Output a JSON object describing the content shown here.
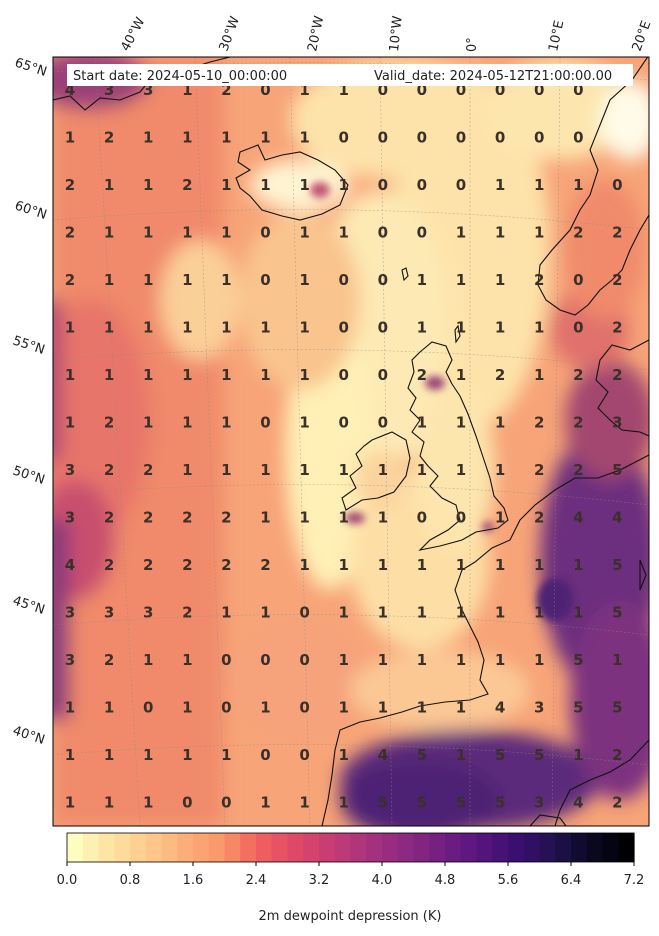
{
  "header": {
    "start_label": "Start date: 2024-05-10_00:00:00",
    "valid_label": "Valid_date: 2024-05-12T21:00:00.00"
  },
  "lon_labels": [
    "40°W",
    "30°W",
    "20°W",
    "10°W",
    "0°",
    "10°E",
    "20°E"
  ],
  "lat_labels": [
    "65°N",
    "60°N",
    "55°N",
    "50°N",
    "45°N",
    "40°N"
  ],
  "colorbar": {
    "label": "2m dewpoint depression (K)",
    "ticks": [
      "0.0",
      "0.8",
      "1.6",
      "2.4",
      "3.2",
      "4.0",
      "4.8",
      "5.6",
      "6.4",
      "7.2"
    ],
    "min": 0.0,
    "max": 7.2,
    "levels": 36
  },
  "grid_values": [
    [
      "4",
      "3",
      "3",
      "1",
      "2",
      "0",
      "1",
      "1",
      "0",
      "0",
      "0",
      "0",
      "0",
      "0"
    ],
    [
      "1",
      "2",
      "1",
      "1",
      "1",
      "1",
      "1",
      "0",
      "0",
      "0",
      "0",
      "0",
      "0",
      "0"
    ],
    [
      "2",
      "1",
      "1",
      "2",
      "1",
      "1",
      "1",
      "1",
      "0",
      "0",
      "0",
      "1",
      "1",
      "1",
      "0"
    ],
    [
      "2",
      "1",
      "1",
      "1",
      "1",
      "0",
      "1",
      "1",
      "0",
      "0",
      "1",
      "1",
      "1",
      "2",
      "2"
    ],
    [
      "2",
      "1",
      "1",
      "1",
      "1",
      "0",
      "1",
      "0",
      "0",
      "1",
      "1",
      "1",
      "2",
      "0",
      "2"
    ],
    [
      "1",
      "1",
      "1",
      "1",
      "1",
      "1",
      "1",
      "0",
      "0",
      "1",
      "1",
      "1",
      "1",
      "0",
      "2"
    ],
    [
      "1",
      "1",
      "1",
      "1",
      "1",
      "1",
      "1",
      "0",
      "0",
      "2",
      "1",
      "2",
      "1",
      "2",
      "2"
    ],
    [
      "1",
      "2",
      "1",
      "1",
      "1",
      "0",
      "1",
      "0",
      "0",
      "1",
      "1",
      "1",
      "2",
      "2",
      "3"
    ],
    [
      "3",
      "2",
      "2",
      "1",
      "1",
      "1",
      "1",
      "1",
      "1",
      "1",
      "1",
      "1",
      "2",
      "2",
      "5"
    ],
    [
      "3",
      "2",
      "2",
      "2",
      "2",
      "1",
      "1",
      "1",
      "1",
      "0",
      "0",
      "1",
      "2",
      "4",
      "4"
    ],
    [
      "4",
      "2",
      "2",
      "2",
      "2",
      "2",
      "1",
      "1",
      "1",
      "1",
      "1",
      "1",
      "1",
      "1",
      "5"
    ],
    [
      "3",
      "3",
      "3",
      "2",
      "1",
      "1",
      "0",
      "1",
      "1",
      "1",
      "1",
      "1",
      "1",
      "1",
      "5"
    ],
    [
      "3",
      "2",
      "1",
      "1",
      "0",
      "0",
      "0",
      "1",
      "1",
      "1",
      "1",
      "1",
      "1",
      "5",
      "1"
    ],
    [
      "1",
      "1",
      "0",
      "1",
      "0",
      "1",
      "0",
      "1",
      "1",
      "1",
      "1",
      "4",
      "3",
      "5",
      "5"
    ],
    [
      "1",
      "1",
      "1",
      "1",
      "1",
      "0",
      "0",
      "1",
      "4",
      "5",
      "1",
      "5",
      "5",
      "1",
      "2"
    ],
    [
      "1",
      "1",
      "1",
      "0",
      "0",
      "1",
      "1",
      "1",
      "5",
      "5",
      "5",
      "5",
      "3",
      "4",
      "2"
    ]
  ]
}
